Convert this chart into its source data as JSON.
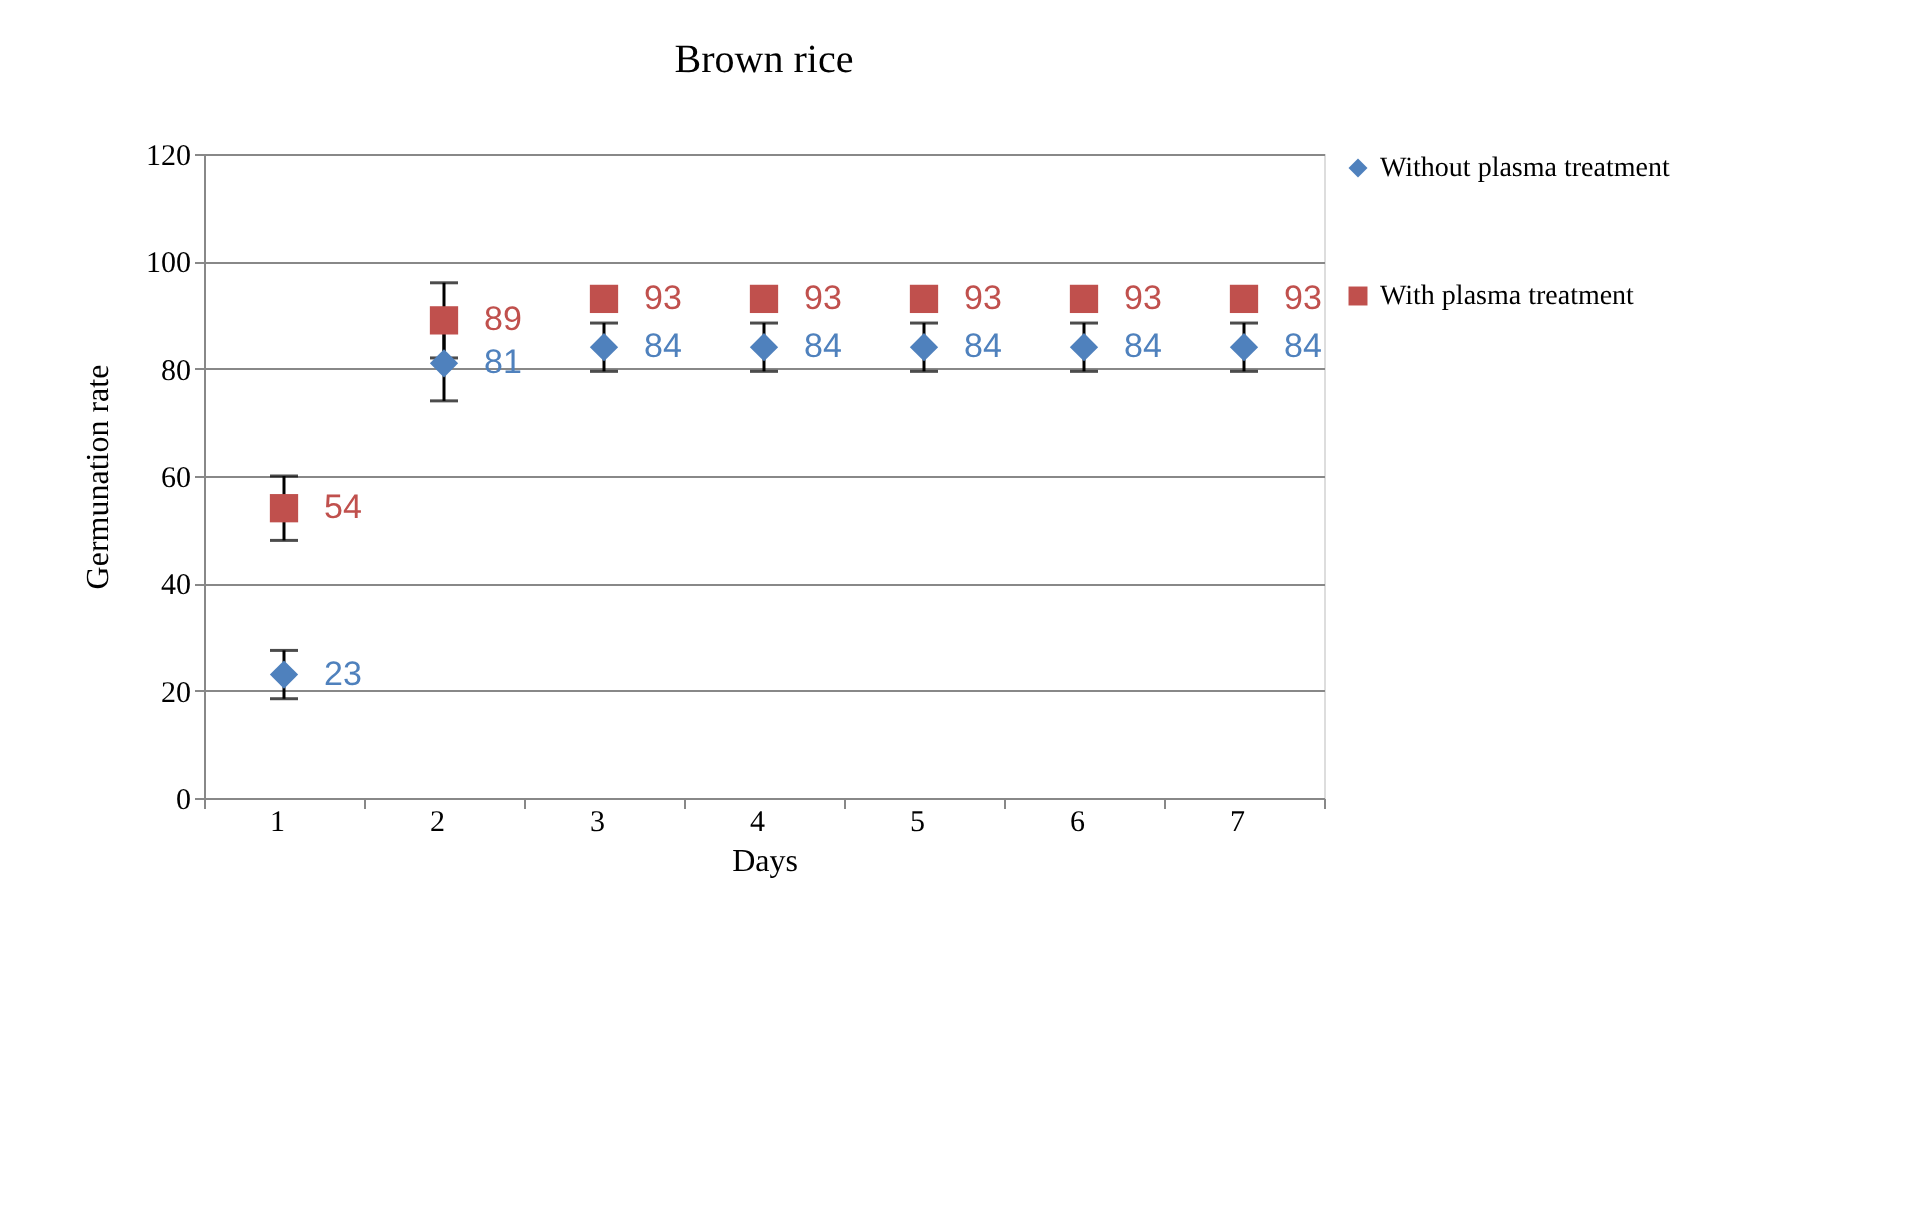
{
  "chart_data": {
    "type": "scatter",
    "title": "Brown rice",
    "xlabel": "Days",
    "ylabel": "Germunation rate",
    "categories": [
      "1",
      "2",
      "3",
      "4",
      "5",
      "6",
      "7"
    ],
    "series": [
      {
        "name": "Without plasma treatment",
        "color": "#4f81bd",
        "marker": "diamond",
        "values": [
          23,
          81,
          84,
          84,
          84,
          84,
          84
        ],
        "errors": [
          4.5,
          7,
          4.5,
          4.5,
          4.5,
          4.5,
          4.5
        ]
      },
      {
        "name": "With plasma treatment",
        "color": "#c0504d",
        "marker": "square",
        "values": [
          54,
          89,
          93,
          93,
          93,
          93,
          93
        ],
        "errors": [
          6,
          7,
          null,
          null,
          null,
          null,
          null
        ]
      }
    ],
    "ylim": [
      0,
      120
    ],
    "yticks": [
      0,
      20,
      40,
      60,
      80,
      100,
      120
    ],
    "grid": "y",
    "legend": "right",
    "data_labels": true
  }
}
